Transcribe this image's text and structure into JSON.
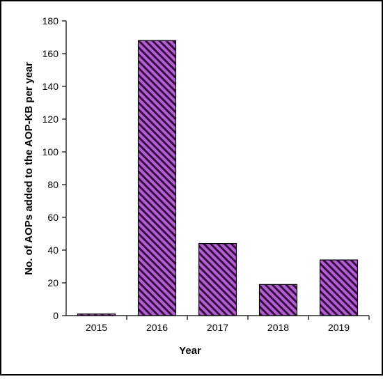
{
  "chart_data": {
    "type": "bar",
    "title": "",
    "xlabel": "Year",
    "ylabel": "No. of AOPs added to the AOP-KB per year",
    "categories": [
      "2015",
      "2016",
      "2017",
      "2018",
      "2019"
    ],
    "values": [
      1,
      168,
      44,
      19,
      34
    ],
    "ylim": [
      0,
      180
    ],
    "yticks": [
      "0",
      "20",
      "40",
      "60",
      "80",
      "100",
      "120",
      "140",
      "160",
      "180"
    ],
    "grid": false,
    "bar_fill": "#b25fcf",
    "bar_hatch": "#3a0a45",
    "bar_edge": "#000000"
  }
}
